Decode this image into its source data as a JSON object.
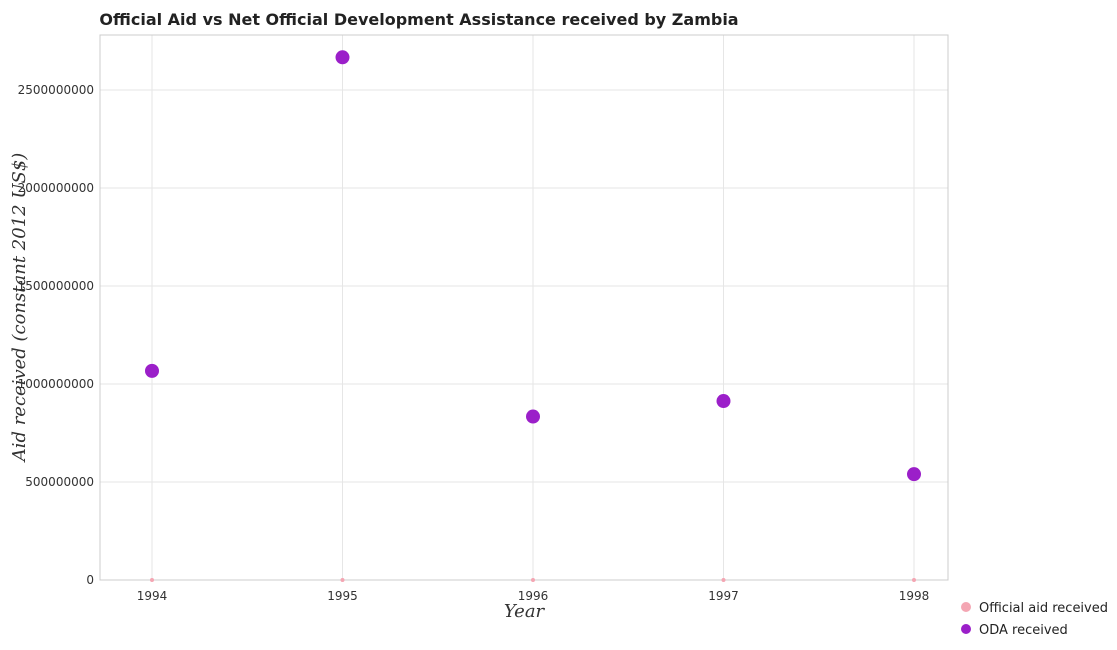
{
  "chart_data": {
    "type": "scatter",
    "title": "Official Aid vs Net Official Development Assistance received by Zambia",
    "xlabel": "Year",
    "ylabel": "Aid received (constant 2012 US$)",
    "categories": [
      "1994",
      "1995",
      "1996",
      "1997",
      "1998"
    ],
    "yticks": [
      "0",
      "500000000",
      "1000000000",
      "1500000000",
      "2000000000",
      "2500000000"
    ],
    "ylim": [
      0,
      2800000000
    ],
    "grid": true,
    "legend_position": "bottom-right",
    "series": [
      {
        "name": "Official aid received",
        "color": "#f4a6b3",
        "values": [
          0,
          0,
          0,
          0,
          0
        ]
      },
      {
        "name": "ODA received",
        "color": "#9b1fc9",
        "values": [
          1067000000,
          2667000000,
          834000000,
          913000000,
          540000000
        ]
      }
    ]
  }
}
